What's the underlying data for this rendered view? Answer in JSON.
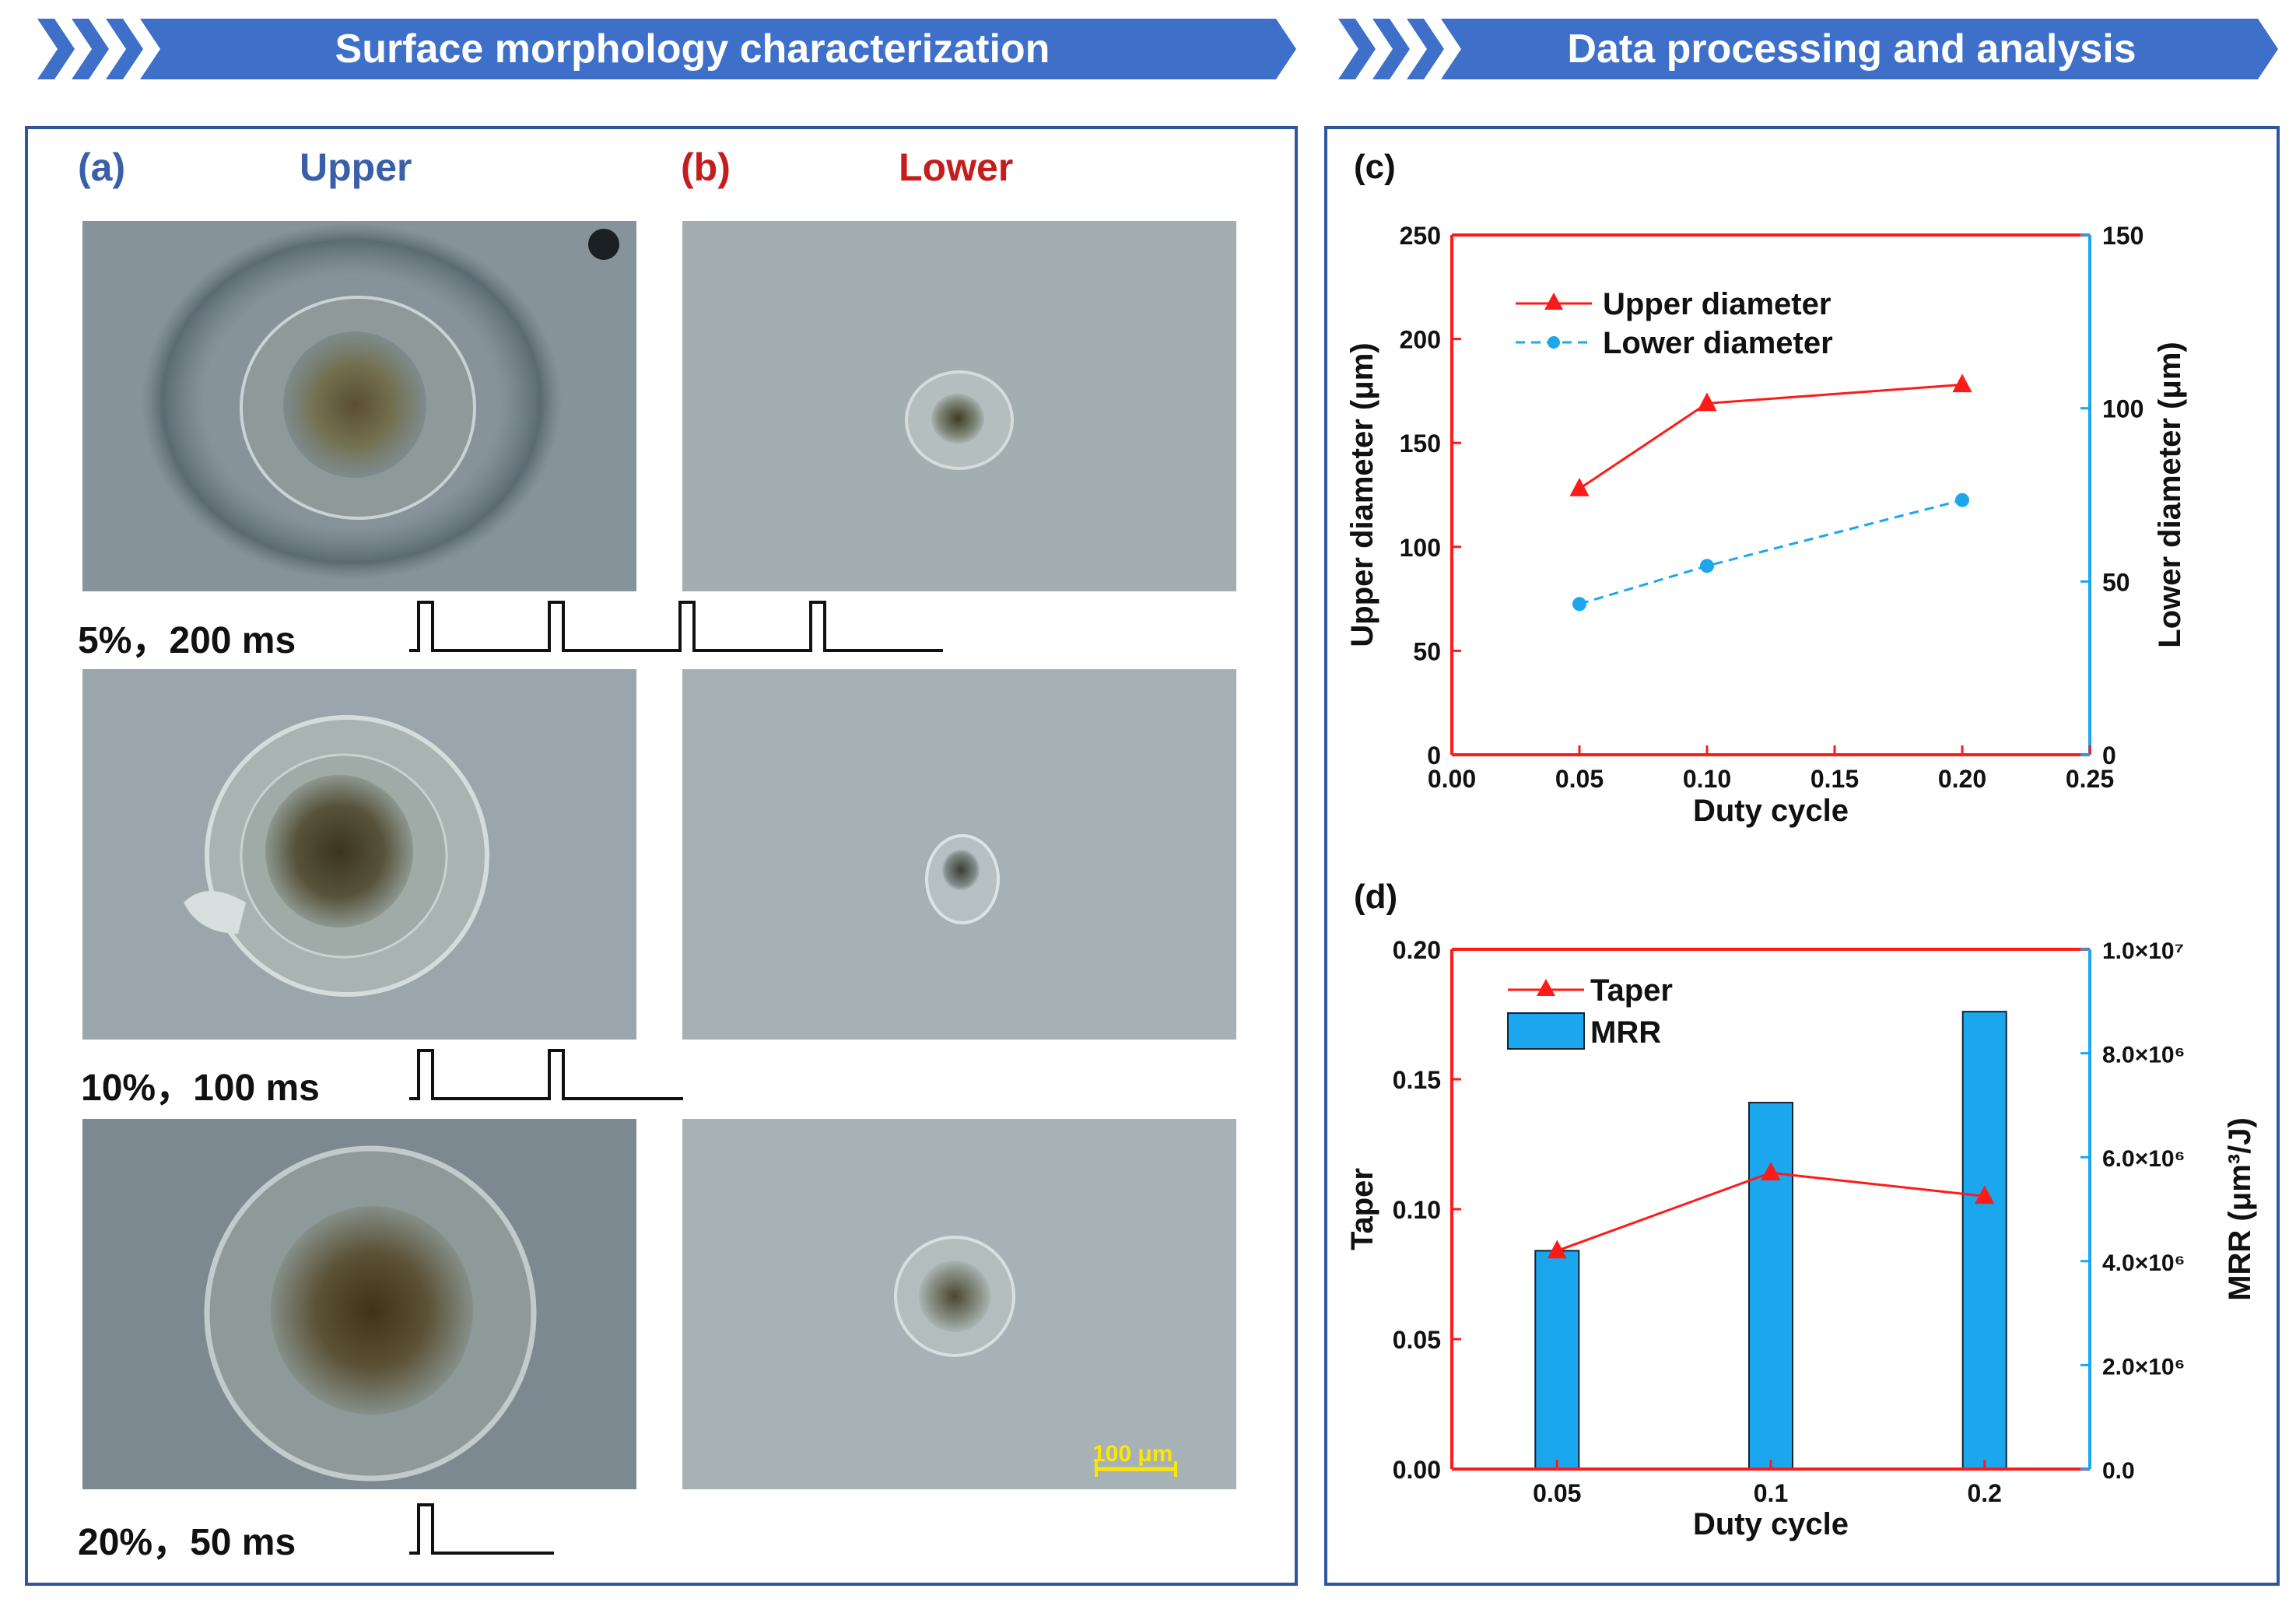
{
  "banners": {
    "left": "Surface morphology characterization",
    "right": "Data processing and analysis"
  },
  "panels": {
    "a": {
      "letter": "(a)",
      "title": "Upper"
    },
    "b": {
      "letter": "(b)",
      "title": "Lower"
    },
    "c": {
      "letter": "(c)"
    },
    "d": {
      "letter": "(d)"
    }
  },
  "conditions": [
    {
      "label": "5%，200 ms",
      "pulses": 4
    },
    {
      "label": "10%，100 ms",
      "pulses": 2
    },
    {
      "label": "20%，50 ms",
      "pulses": 1
    }
  ],
  "scale_bar": "100 μm",
  "colors": {
    "banner": "#3e6fc9",
    "panel_border": "#2f55a0",
    "upper_title": "#3a5fa8",
    "lower_title": "#c51d1d",
    "series_red": "#ff1a1a",
    "series_blue": "#1aa7ee",
    "scale_bar": "#ffe600"
  },
  "chart_data": [
    {
      "id": "c",
      "type": "line",
      "xlabel": "Duty cycle",
      "ylabel": "Upper diameter (μm)",
      "y2label": "Lower diameter (μm)",
      "xlim": [
        0,
        0.25
      ],
      "ylim": [
        0,
        250
      ],
      "y2lim": [
        0,
        150
      ],
      "xticks": [
        "0.00",
        "0.05",
        "0.10",
        "0.15",
        "0.20",
        "0.25"
      ],
      "yticks": [
        "0",
        "50",
        "100",
        "150",
        "200",
        "250"
      ],
      "y2ticks": [
        "0",
        "50",
        "100",
        "150"
      ],
      "legend_position": "top-left",
      "series": [
        {
          "name": "Upper diameter",
          "axis": "left",
          "marker": "triangle",
          "x": [
            0.05,
            0.1,
            0.2
          ],
          "values": [
            128,
            169,
            178
          ]
        },
        {
          "name": "Lower diameter",
          "axis": "right",
          "marker": "circle",
          "dash": true,
          "x": [
            0.05,
            0.1,
            0.2
          ],
          "values": [
            43.5,
            54.5,
            73.5
          ]
        }
      ]
    },
    {
      "id": "d",
      "type": "bar",
      "xlabel": "Duty cycle",
      "ylabel": "Taper",
      "y2label": "MRR (μm³/J)",
      "categories": [
        "0.05",
        "0.1",
        "0.2"
      ],
      "ylim": [
        0,
        0.2
      ],
      "y2lim": [
        0,
        10000000
      ],
      "yticks": [
        "0.00",
        "0.05",
        "0.10",
        "0.15",
        "0.20"
      ],
      "y2ticks": [
        "0.0",
        "2.0×10⁶",
        "4.0×10⁶",
        "6.0×10⁶",
        "8.0×10⁶",
        "1.0×10⁷"
      ],
      "legend_position": "top-left",
      "series": [
        {
          "name": "Taper",
          "axis": "left",
          "kind": "line",
          "marker": "triangle",
          "values": [
            0.084,
            0.114,
            0.105
          ]
        },
        {
          "name": "MRR",
          "axis": "right",
          "kind": "bar",
          "values": [
            4200000,
            7050000,
            8800000
          ]
        }
      ]
    }
  ]
}
